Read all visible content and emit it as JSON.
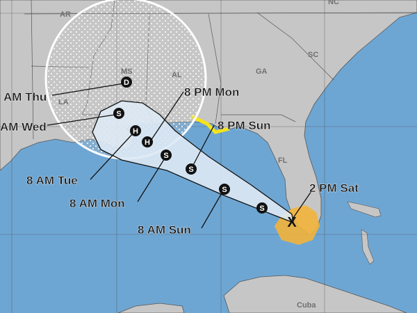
{
  "colors": {
    "water": "#6ea6d3",
    "land": "#c6c6c6",
    "cone": "#dde9f4",
    "warning": "#f7e418",
    "watch": "#f2b43a"
  },
  "states": [
    "AR",
    "MS",
    "AL",
    "GA",
    "SC",
    "NC",
    "LA",
    "FL",
    "Cuba"
  ],
  "forecast_points": [
    {
      "symbol": "D",
      "time": "AM Thu"
    },
    {
      "symbol": "S",
      "time": "AM Wed"
    },
    {
      "symbol": "H",
      "time": "8 AM Tue"
    },
    {
      "symbol": "H",
      "time": "8 PM Mon"
    },
    {
      "symbol": "S",
      "time": "8 AM Mon"
    },
    {
      "symbol": "S",
      "time": "8 PM Sun"
    },
    {
      "symbol": "S",
      "time": "8 AM Sun"
    },
    {
      "symbol": "S",
      "time": ""
    }
  ],
  "current_position": {
    "symbol": "X",
    "time": "2 PM Sat"
  }
}
